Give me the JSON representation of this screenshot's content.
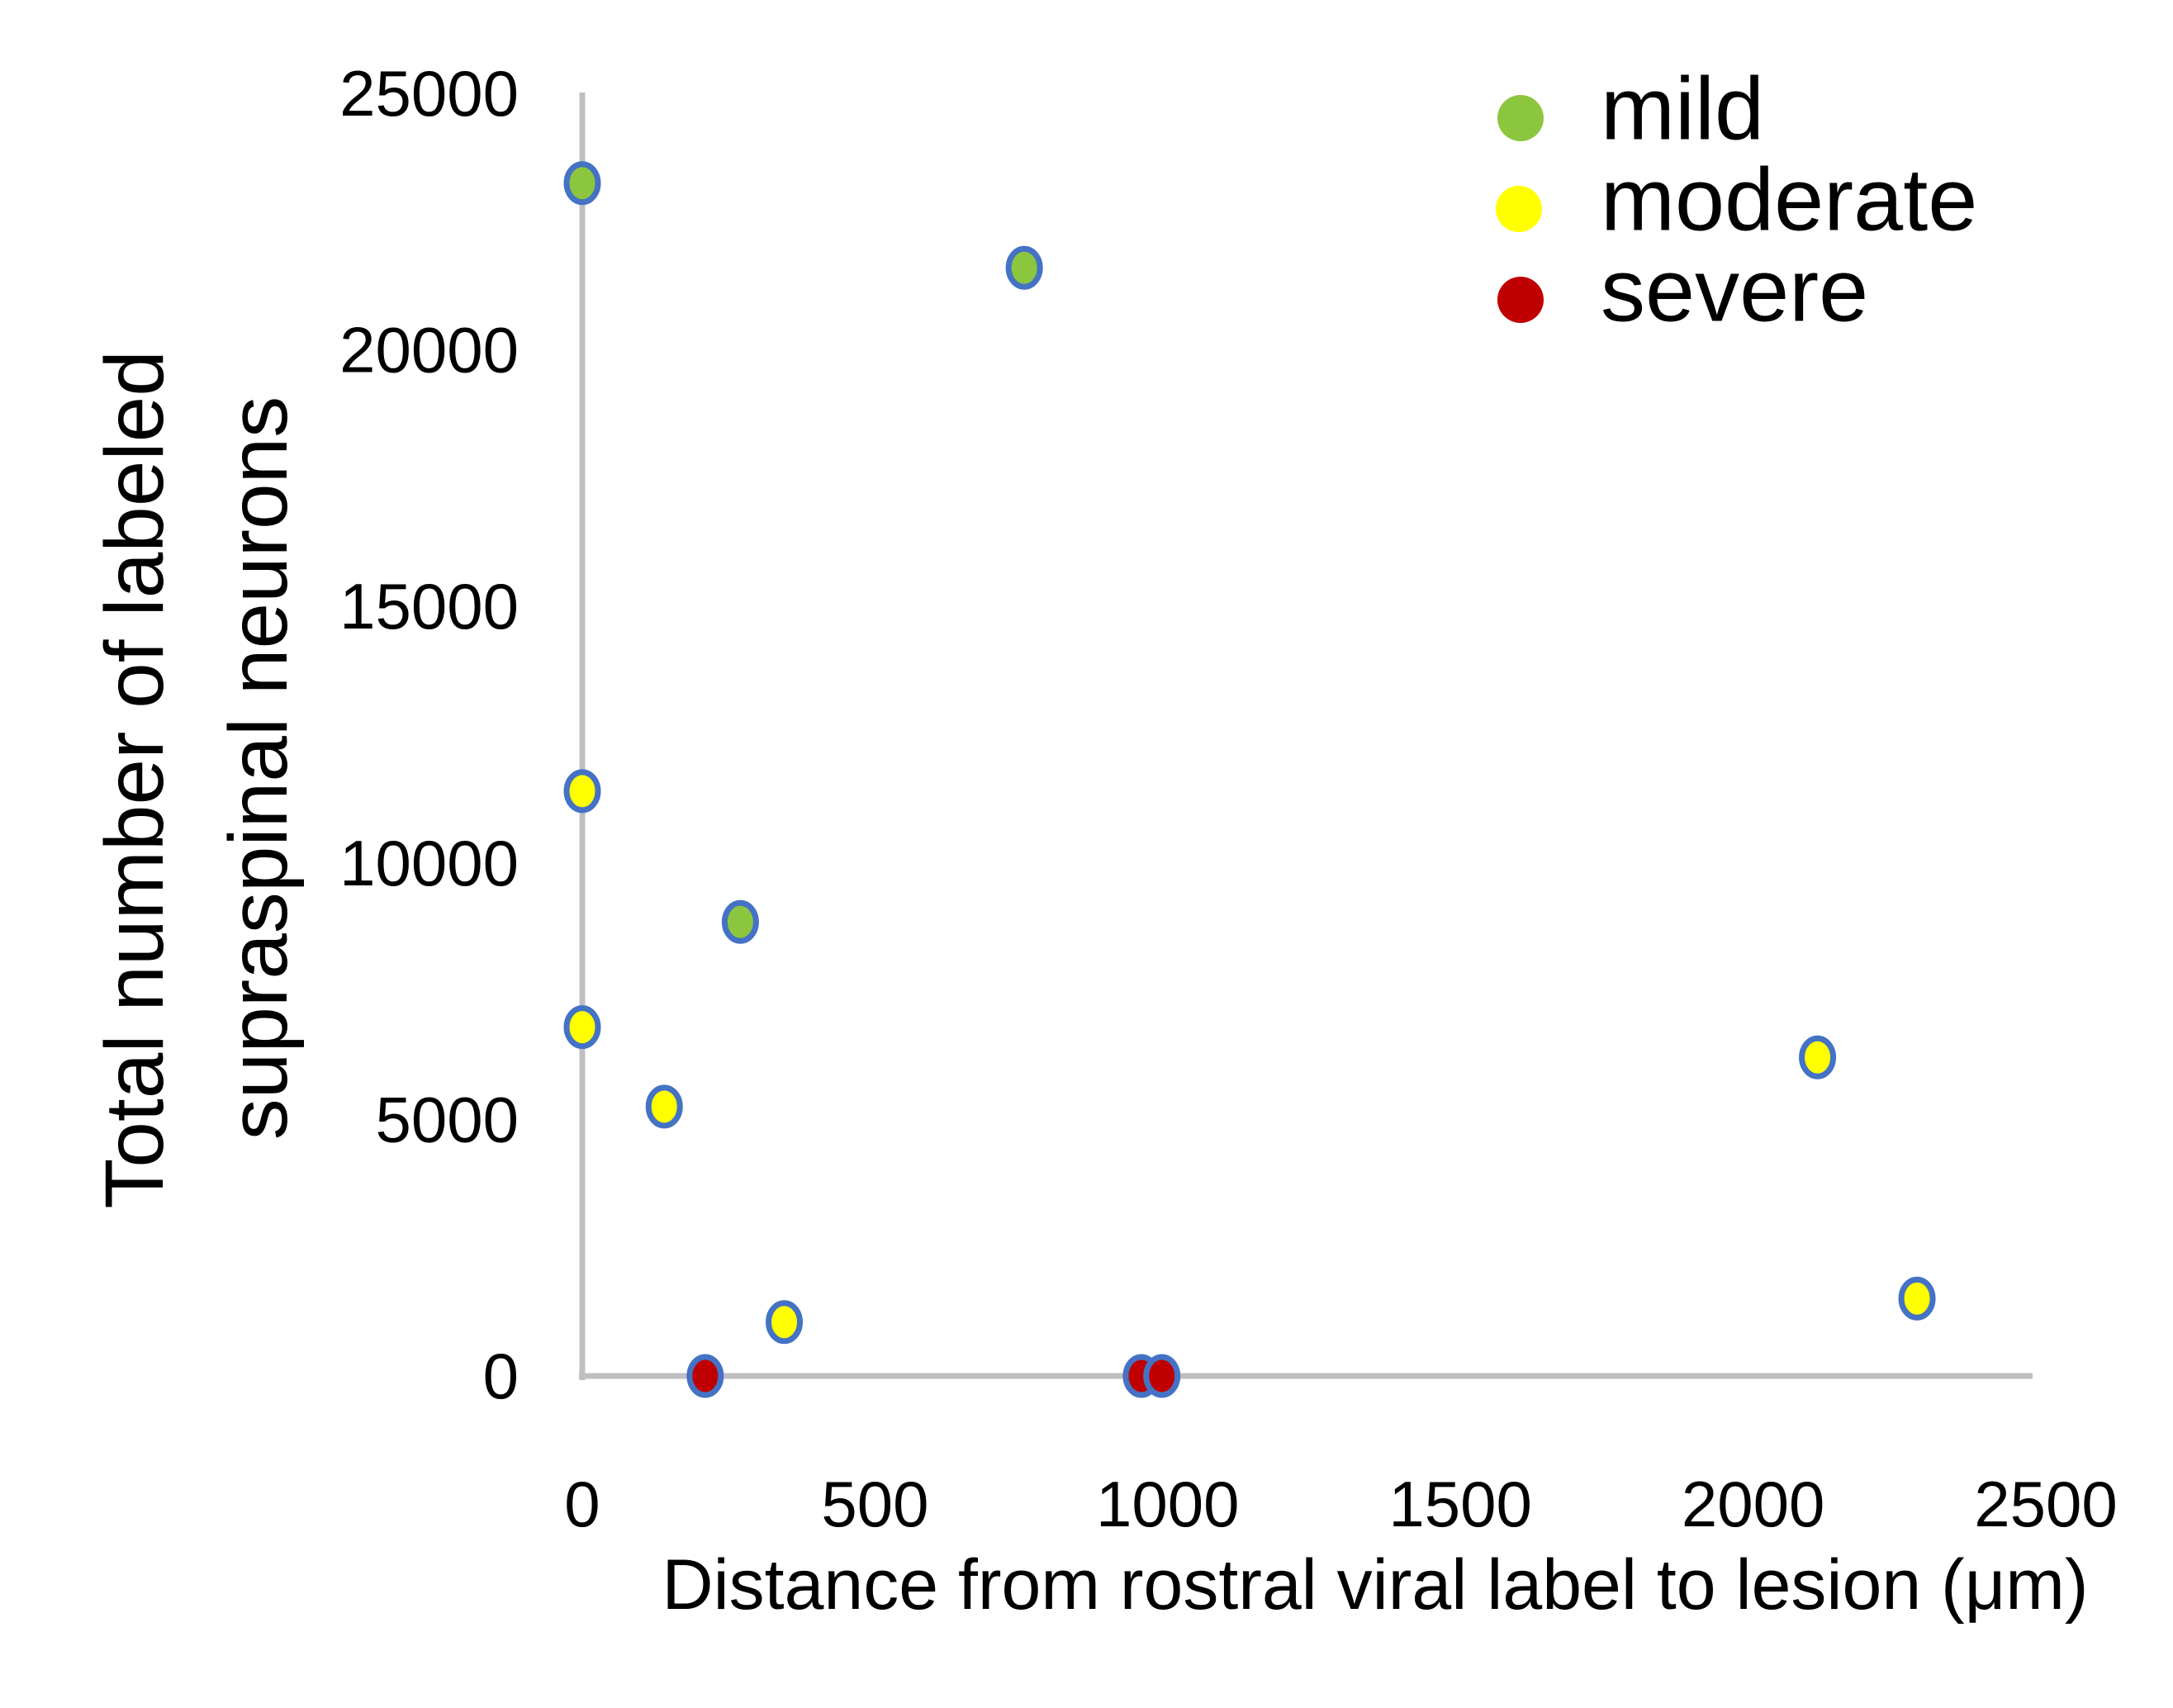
{
  "chart_data": {
    "type": "scatter",
    "title": "",
    "xlabel": "Distance from rostral viral label to lesion (μm)",
    "ylabel": "Total number of labeled supraspinal neurons",
    "ylabel_lines": [
      "Total number of labeled",
      "supraspinal neurons"
    ],
    "xlim": [
      0,
      2500
    ],
    "ylim": [
      0,
      25000
    ],
    "x_ticks": [
      "0",
      "500",
      "1000",
      "1500",
      "2000",
      "2500"
    ],
    "y_ticks": [
      "0",
      "5000",
      "10000",
      "15000",
      "20000",
      "25000"
    ],
    "grid": false,
    "legend_position": "top-right",
    "colors": {
      "axis_line": "#BFBFBF",
      "marker_border": "#4472C4",
      "text": "#000000",
      "background": "#FFFFFF",
      "mild": "#8CC63E",
      "moderate": "#FFFF00",
      "severe": "#C00000"
    },
    "series": [
      {
        "name": "mild",
        "color": "#8CC63E",
        "points": [
          [
            0,
            23250
          ],
          [
            755,
            21600
          ],
          [
            270,
            8850
          ]
        ]
      },
      {
        "name": "moderate",
        "color": "#FFFF00",
        "points": [
          [
            0,
            11400
          ],
          [
            0,
            6800
          ],
          [
            140,
            5250
          ],
          [
            345,
            1050
          ],
          [
            2110,
            6210
          ],
          [
            2280,
            1510
          ]
        ]
      },
      {
        "name": "severe",
        "color": "#C00000",
        "points": [
          [
            210,
            0
          ],
          [
            955,
            0
          ],
          [
            990,
            0
          ]
        ]
      }
    ]
  }
}
